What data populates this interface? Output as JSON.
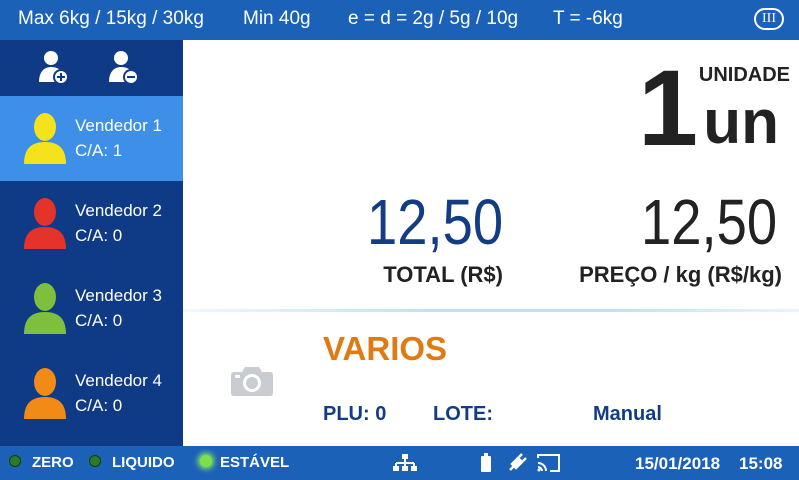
{
  "header": {
    "max_capacity": "Max 6kg / 15kg / 30kg",
    "min_capacity": "Min 40g",
    "division": "e = d = 2g / 5g / 10g",
    "tare": "T = -6kg",
    "accuracy_class": "III"
  },
  "sidebar": {
    "add_user_icon": "add-user-icon",
    "remove_user_icon": "remove-user-icon",
    "vendors": [
      {
        "name": "Vendedor 1",
        "ca": "C/A: 1",
        "color": "#f5e11c",
        "active": true
      },
      {
        "name": "Vendedor 2",
        "ca": "C/A: 0",
        "color": "#e4332b",
        "active": false
      },
      {
        "name": "Vendedor 3",
        "ca": "C/A: 0",
        "color": "#7ebf3e",
        "active": false
      },
      {
        "name": "Vendedor 4",
        "ca": "C/A: 0",
        "color": "#f28a16",
        "active": false
      }
    ]
  },
  "main": {
    "unit_label": "UNIDADE",
    "quantity": "1",
    "unit": "un",
    "total_value": "12,50",
    "total_label": "TOTAL (R$)",
    "price_value": "12,50",
    "price_label": "PREÇO / kg (R$/kg)",
    "camera_icon": "camera-icon",
    "product_name": "VARIOS",
    "plu": "PLU: 0",
    "lote": "LOTE:",
    "mode": "Manual"
  },
  "statusbar": {
    "zero_label": "ZERO",
    "liquido_label": "LIQUIDO",
    "estavel_label": "ESTÁVEL",
    "zero_on": false,
    "liquido_on": false,
    "estavel_on": true,
    "network_icon": "network-icon",
    "battery_icon": "battery-icon",
    "power_plug_icon": "power-plug-icon",
    "cast_icon": "cast-icon",
    "date": "15/01/2018",
    "time": "15:08"
  },
  "colors": {
    "bar_blue": "#1b61b8",
    "sidebar_blue": "#0f3a86",
    "active_blue": "#3d8fe8",
    "value_blue": "#123d82",
    "product_orange": "#e07b14"
  }
}
